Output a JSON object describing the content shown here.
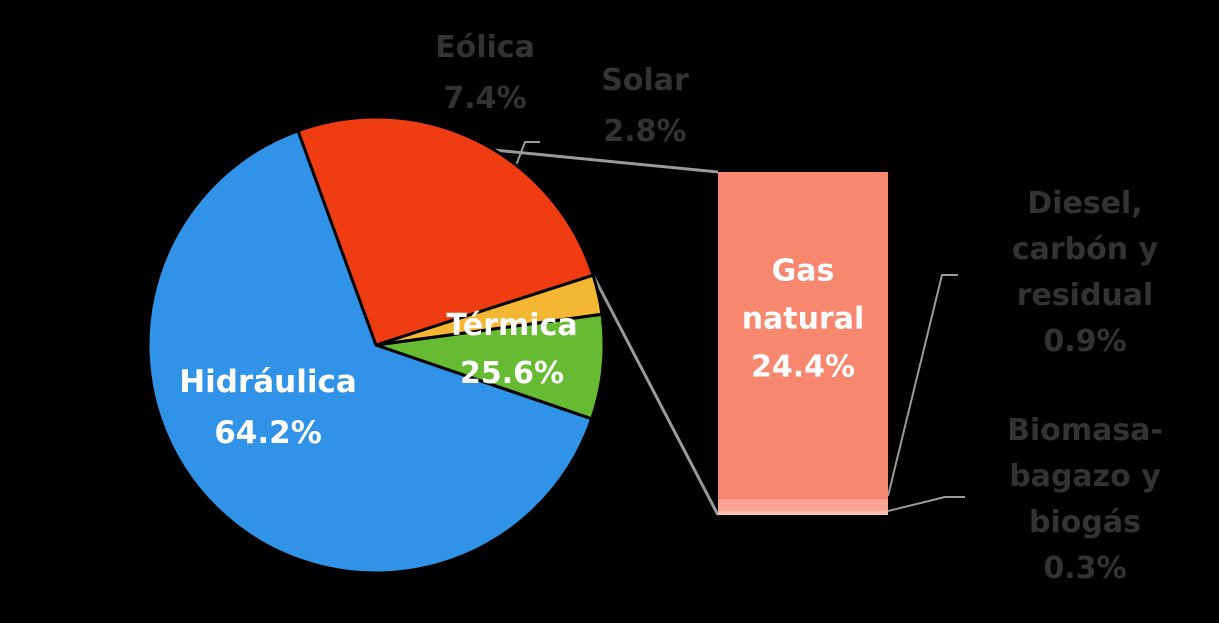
{
  "chart_data": {
    "type": "pie",
    "title": "",
    "slices": [
      {
        "name": "Hidráulica",
        "value": 64.2,
        "label": "64.2%",
        "color": "#3193E8",
        "label_color": "#FFFFFF"
      },
      {
        "name": "Eólica",
        "value": 7.4,
        "label": "7.4%",
        "color": "#66BB33",
        "label_color": "#333333"
      },
      {
        "name": "Solar",
        "value": 2.8,
        "label": "2.8%",
        "color": "#F4B733",
        "label_color": "#333333"
      },
      {
        "name": "Térmica",
        "value": 25.6,
        "label": "25.6%",
        "color": "#F03C12",
        "label_color": "#FFFFFF"
      }
    ],
    "breakdown": {
      "parent": "Térmica",
      "type": "stacked-bar",
      "segments": [
        {
          "name_lines": [
            "Gas",
            "natural"
          ],
          "value": 24.4,
          "label": "24.4%",
          "color": "#F7876E",
          "label_color": "#FFFFFF"
        },
        {
          "name_lines": [
            "Diesel,",
            "carbón y",
            "residual"
          ],
          "value": 0.9,
          "label": "0.9%",
          "color": "#F9A493",
          "label_color": "#333333"
        },
        {
          "name_lines": [
            "Biomasa-",
            "bagazo y",
            "biogás"
          ],
          "value": 0.3,
          "label": "0.3%",
          "color": "#FBC0B4",
          "label_color": "#333333"
        }
      ]
    }
  }
}
